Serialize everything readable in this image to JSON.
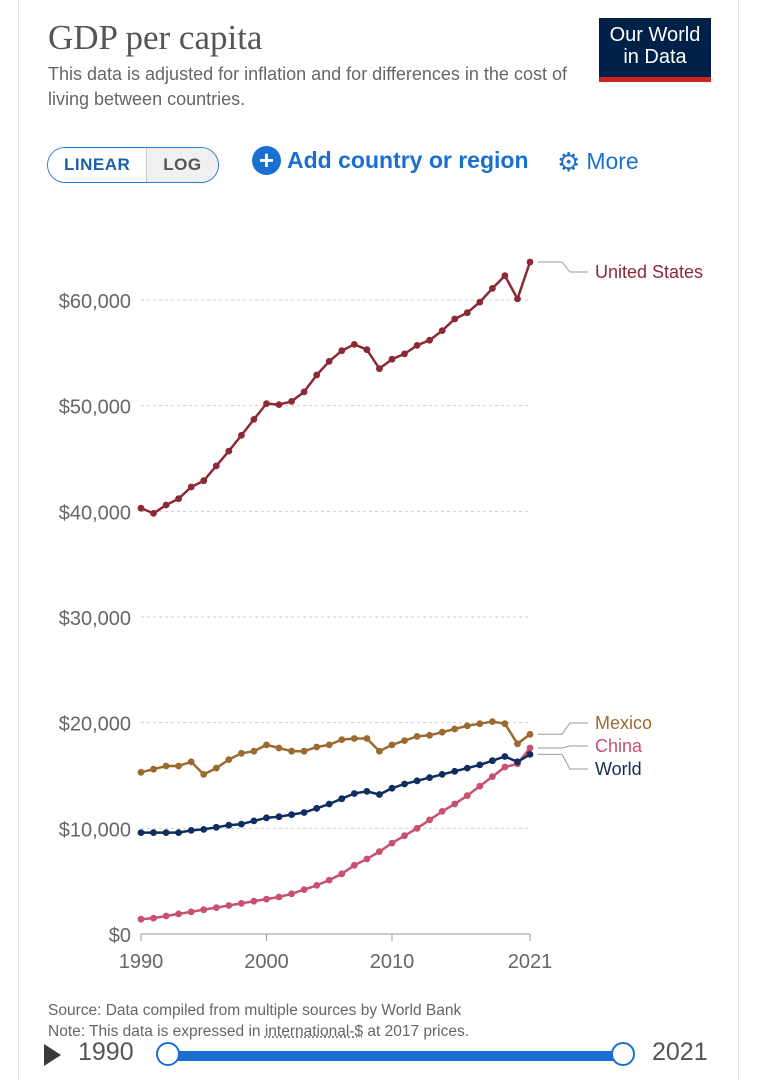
{
  "header": {
    "title": "GDP per capita",
    "subtitle": "This data is adjusted for inflation and for differences in the cost of living between countries.",
    "logo_line1": "Our World",
    "logo_line2": "in Data"
  },
  "controls": {
    "linear_label": "LINEAR",
    "log_label": "LOG",
    "add_label": "Add country or region",
    "more_label": "More",
    "active_scale": "linear"
  },
  "footer": {
    "source": "Source: Data compiled from multiple sources by World Bank",
    "note_prefix": "Note: This data is expressed in ",
    "note_link": "international-$",
    "note_suffix": " at 2017 prices."
  },
  "timeline": {
    "start_year": "1990",
    "end_year": "2021"
  },
  "colors": {
    "United States": "#8b2a36",
    "Mexico": "#9a6b2f",
    "China": "#c9506f",
    "World": "#0f2d5e",
    "accent": "#1b6fd1"
  },
  "chart_data": {
    "type": "line",
    "title": "GDP per capita",
    "xlabel": "",
    "ylabel": "",
    "xlim": [
      1990,
      2021
    ],
    "ylim": [
      0,
      64000
    ],
    "y_ticks": [
      {
        "value": 0,
        "label": "$0"
      },
      {
        "value": 10000,
        "label": "$10,000"
      },
      {
        "value": 20000,
        "label": "$20,000"
      },
      {
        "value": 30000,
        "label": "$30,000"
      },
      {
        "value": 40000,
        "label": "$40,000"
      },
      {
        "value": 50000,
        "label": "$50,000"
      },
      {
        "value": 60000,
        "label": "$60,000"
      }
    ],
    "x_ticks": [
      {
        "value": 1990,
        "label": "1990"
      },
      {
        "value": 2000,
        "label": "2000"
      },
      {
        "value": 2010,
        "label": "2010"
      },
      {
        "value": 2021,
        "label": "2021"
      }
    ],
    "grid": "horizontal dotted",
    "legend": "line end labels",
    "x": [
      1990,
      1991,
      1992,
      1993,
      1994,
      1995,
      1996,
      1997,
      1998,
      1999,
      2000,
      2001,
      2002,
      2003,
      2004,
      2005,
      2006,
      2007,
      2008,
      2009,
      2010,
      2011,
      2012,
      2013,
      2014,
      2015,
      2016,
      2017,
      2018,
      2019,
      2020,
      2021
    ],
    "series": [
      {
        "name": "United States",
        "values": [
          40300,
          39800,
          40600,
          41200,
          42300,
          42900,
          44300,
          45700,
          47200,
          48700,
          50200,
          50100,
          50400,
          51300,
          52900,
          54200,
          55200,
          55800,
          55300,
          53500,
          54400,
          54900,
          55700,
          56200,
          57100,
          58200,
          58800,
          59800,
          61100,
          62300,
          60100,
          63600
        ]
      },
      {
        "name": "Mexico",
        "values": [
          15300,
          15600,
          15900,
          15900,
          16300,
          15100,
          15700,
          16500,
          17100,
          17300,
          17900,
          17600,
          17300,
          17300,
          17700,
          17900,
          18400,
          18500,
          18500,
          17300,
          17900,
          18300,
          18700,
          18800,
          19100,
          19400,
          19700,
          19900,
          20100,
          19900,
          18000,
          18900
        ]
      },
      {
        "name": "China",
        "values": [
          1400,
          1500,
          1700,
          1900,
          2100,
          2300,
          2500,
          2700,
          2900,
          3100,
          3300,
          3500,
          3800,
          4200,
          4600,
          5100,
          5700,
          6500,
          7100,
          7800,
          8600,
          9300,
          10000,
          10800,
          11600,
          12300,
          13100,
          14000,
          14900,
          15800,
          16100,
          17600
        ]
      },
      {
        "name": "World",
        "values": [
          9600,
          9600,
          9600,
          9600,
          9800,
          9900,
          10100,
          10300,
          10400,
          10700,
          11000,
          11100,
          11300,
          11500,
          11900,
          12300,
          12800,
          13300,
          13500,
          13200,
          13800,
          14200,
          14500,
          14800,
          15100,
          15400,
          15700,
          16000,
          16400,
          16800,
          16300,
          17000
        ]
      }
    ]
  }
}
